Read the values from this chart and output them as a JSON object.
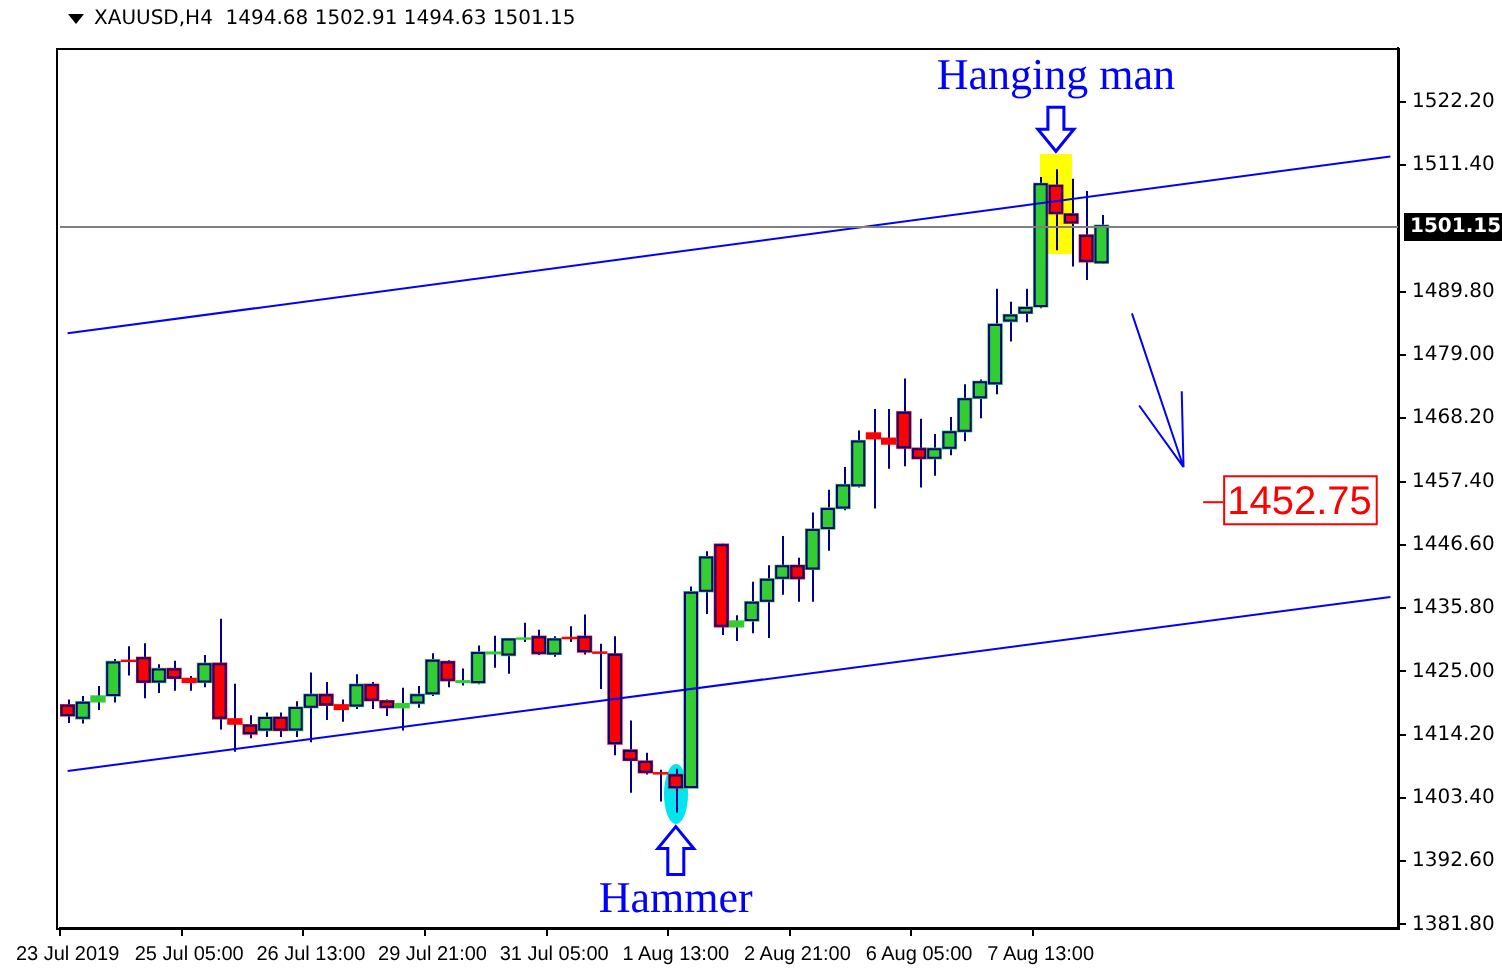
{
  "chart_data": {
    "type": "candlestick",
    "title": "XAUUSD,H4  1494.68 1502.91 1494.63 1501.15",
    "categories": [
      "23 Jul 2019",
      null,
      null,
      null,
      null,
      null,
      null,
      null,
      "25 Jul 05:00",
      null,
      null,
      null,
      null,
      null,
      null,
      null,
      "26 Jul 13:00",
      null,
      null,
      null,
      null,
      null,
      null,
      null,
      "29 Jul 21:00",
      null,
      null,
      null,
      null,
      null,
      null,
      null,
      "31 Jul 05:00",
      null,
      null,
      null,
      null,
      null,
      null,
      null,
      "1 Aug 13:00",
      null,
      null,
      null,
      null,
      null,
      null,
      null,
      "2 Aug 21:00",
      null,
      null,
      null,
      null,
      null,
      null,
      null,
      "6 Aug 05:00",
      null,
      null,
      null,
      null,
      null,
      null,
      null,
      "7 Aug 13:00",
      null,
      null,
      null,
      null,
      null,
      null,
      null,
      null,
      null,
      null,
      null,
      null,
      null,
      null,
      null,
      null,
      null,
      null,
      null,
      null,
      null,
      null,
      null
    ],
    "ohlc": [
      [
        1419.3,
        1420.2,
        1416.2,
        1417.4
      ],
      [
        1416.9,
        1420.8,
        1416.1,
        1419.8
      ],
      [
        1419.8,
        1422.5,
        1418.4,
        1420.8
      ],
      [
        1420.8,
        1427.1,
        1419.7,
        1426.7
      ],
      [
        1426.9,
        1429.3,
        1424.3,
        1426.7
      ],
      [
        1427.4,
        1429.8,
        1420.4,
        1423.1
      ],
      [
        1423.1,
        1426.2,
        1421.3,
        1425.5
      ],
      [
        1425.5,
        1426.8,
        1421.7,
        1423.8
      ],
      [
        1423.8,
        1424.2,
        1421.7,
        1423.1
      ],
      [
        1423.1,
        1427.8,
        1422.3,
        1426.4
      ],
      [
        1426.4,
        1434.0,
        1415.1,
        1416.9
      ],
      [
        1416.9,
        1422.9,
        1411.3,
        1416.0
      ],
      [
        1415.9,
        1417.5,
        1413.6,
        1414.3
      ],
      [
        1414.9,
        1418.0,
        1413.8,
        1417.2
      ],
      [
        1417.2,
        1418.0,
        1413.8,
        1414.9
      ],
      [
        1414.9,
        1419.9,
        1413.8,
        1418.9
      ],
      [
        1418.8,
        1424.8,
        1412.9,
        1421.1
      ],
      [
        1421.1,
        1423.2,
        1416.7,
        1419.2
      ],
      [
        1419.3,
        1420.2,
        1416.4,
        1418.5
      ],
      [
        1419.0,
        1424.5,
        1418.6,
        1422.8
      ],
      [
        1422.8,
        1423.2,
        1418.6,
        1420.0
      ],
      [
        1420.0,
        1420.2,
        1417.4,
        1418.8
      ],
      [
        1418.8,
        1422.2,
        1414.9,
        1419.5
      ],
      [
        1419.5,
        1422.5,
        1418.8,
        1421.1
      ],
      [
        1421.1,
        1428.1,
        1420.8,
        1427.0
      ],
      [
        1426.7,
        1426.9,
        1422.3,
        1423.4
      ],
      [
        1423.1,
        1425.5,
        1422.6,
        1423.4
      ],
      [
        1423.0,
        1429.4,
        1422.8,
        1428.3
      ],
      [
        1428.0,
        1431.1,
        1425.6,
        1428.3
      ],
      [
        1427.7,
        1430.7,
        1424.6,
        1430.6
      ],
      [
        1430.5,
        1433.3,
        1430.0,
        1430.7
      ],
      [
        1431.0,
        1432.1,
        1427.8,
        1428.0
      ],
      [
        1427.9,
        1431.0,
        1427.5,
        1430.6
      ],
      [
        1430.8,
        1432.7,
        1430.0,
        1430.6
      ],
      [
        1431.0,
        1434.7,
        1427.9,
        1428.3
      ],
      [
        1428.3,
        1429.7,
        1422.0,
        1428.1
      ],
      [
        1428.0,
        1431.0,
        1410.7,
        1412.6
      ],
      [
        1411.6,
        1416.6,
        1404.3,
        1409.8
      ],
      [
        1409.7,
        1411.1,
        1407.4,
        1407.7
      ],
      [
        1407.7,
        1408.2,
        1402.8,
        1407.5
      ],
      [
        1407.4,
        1408.4,
        1400.9,
        1405.1
      ],
      [
        1405.1,
        1439.5,
        1405.1,
        1438.6
      ],
      [
        1438.6,
        1445.5,
        1434.8,
        1444.6
      ],
      [
        1446.7,
        1446.8,
        1431.2,
        1432.6
      ],
      [
        1432.6,
        1434.6,
        1430.2,
        1433.6
      ],
      [
        1433.6,
        1440.3,
        1431.5,
        1436.9
      ],
      [
        1436.9,
        1443.1,
        1430.7,
        1440.8
      ],
      [
        1440.8,
        1448.1,
        1438.1,
        1443.1
      ],
      [
        1443.1,
        1444.4,
        1436.9,
        1440.8
      ],
      [
        1442.4,
        1452.1,
        1436.9,
        1449.3
      ],
      [
        1449.3,
        1456.0,
        1445.6,
        1452.9
      ],
      [
        1452.8,
        1459.9,
        1452.5,
        1456.9
      ],
      [
        1456.6,
        1466.1,
        1456.4,
        1464.4
      ],
      [
        1465.7,
        1469.8,
        1452.8,
        1464.7
      ],
      [
        1464.8,
        1469.8,
        1459.6,
        1463.8
      ],
      [
        1469.3,
        1475.0,
        1460.0,
        1463.1
      ],
      [
        1463.1,
        1468.1,
        1456.4,
        1461.3
      ],
      [
        1461.3,
        1465.5,
        1458.4,
        1463.1
      ],
      [
        1463.0,
        1468.4,
        1461.9,
        1466.0
      ],
      [
        1465.9,
        1474.0,
        1464.3,
        1471.6
      ],
      [
        1471.6,
        1474.8,
        1468.2,
        1474.5
      ],
      [
        1474.0,
        1490.3,
        1472.3,
        1484.3
      ],
      [
        1484.7,
        1488.1,
        1481.3,
        1485.9
      ],
      [
        1486.1,
        1490.3,
        1484.6,
        1487.2
      ],
      [
        1487.2,
        1509.4,
        1487.0,
        1508.3
      ],
      [
        1508.0,
        1510.7,
        1496.9,
        1503.1
      ],
      [
        1503.1,
        1509.1,
        1494.1,
        1501.5
      ],
      [
        1499.5,
        1507.0,
        1491.8,
        1494.9
      ],
      [
        1494.68,
        1502.91,
        1494.63,
        1501.15
      ],
      null,
      null,
      null,
      null,
      null,
      null,
      null,
      null,
      null,
      null,
      null,
      null,
      null,
      null,
      null,
      null,
      null,
      null,
      null
    ],
    "colors": [
      "#ff0000",
      "#32cd32",
      "#32cd32",
      "#32cd32",
      "#ff0000",
      "#ff0000",
      "#32cd32",
      "#ff0000",
      "#ff0000",
      "#32cd32",
      "#ff0000",
      "#ff0000",
      "#ff0000",
      "#32cd32",
      "#ff0000",
      "#32cd32",
      "#32cd32",
      "#ff0000",
      "#ff0000",
      "#32cd32",
      "#ff0000",
      "#ff0000",
      "#32cd32",
      "#32cd32",
      "#32cd32",
      "#ff0000",
      "#32cd32",
      "#32cd32",
      "#32cd32",
      "#32cd32",
      "#32cd32",
      "#ff0000",
      "#32cd32",
      "#ff0000",
      "#ff0000",
      "#ff0000",
      "#ff0000",
      "#ff0000",
      "#ff0000",
      "#ff0000",
      "#ff0000",
      "#32cd32",
      "#32cd32",
      "#ff0000",
      "#32cd32",
      "#32cd32",
      "#32cd32",
      "#32cd32",
      "#ff0000",
      "#32cd32",
      "#32cd32",
      "#32cd32",
      "#32cd32",
      "#ff0000",
      "#ff0000",
      "#ff0000",
      "#ff0000",
      "#32cd32",
      "#32cd32",
      "#32cd32",
      "#32cd32",
      "#32cd32",
      "#32cd32",
      "#32cd32",
      "#32cd32",
      "#ff0000",
      "#ff0000",
      "#ff0000",
      "#32cd32",
      null,
      null,
      null,
      null,
      null,
      null,
      null,
      null,
      null,
      null,
      null,
      null,
      null,
      null,
      null,
      null,
      null,
      null,
      null
    ],
    "series": [
      {
        "type": "line",
        "color": "#0000ff",
        "values": [
          1482.7,
          null,
          null,
          null,
          null,
          null,
          null,
          null,
          null,
          null,
          null,
          null,
          null,
          null,
          null,
          null,
          null,
          null,
          null,
          null,
          null,
          null,
          null,
          null,
          null,
          null,
          null,
          null,
          null,
          null,
          null,
          null,
          null,
          null,
          null,
          null,
          null,
          null,
          null,
          null,
          null,
          null,
          null,
          null,
          null,
          null,
          null,
          null,
          null,
          null,
          null,
          null,
          null,
          null,
          null,
          null,
          null,
          null,
          null,
          null,
          null,
          null,
          null,
          null,
          null,
          null,
          null,
          null,
          null,
          null,
          null,
          null,
          null,
          null,
          null,
          null,
          null,
          null,
          null,
          null,
          null,
          null,
          null,
          null,
          null,
          null,
          null,
          1512.9
        ]
      },
      {
        "type": "line",
        "color": "#0000ff",
        "values": [
          1408.0,
          null,
          null,
          null,
          null,
          null,
          null,
          null,
          null,
          null,
          null,
          null,
          null,
          null,
          null,
          null,
          null,
          null,
          null,
          null,
          null,
          null,
          null,
          null,
          null,
          null,
          null,
          null,
          null,
          null,
          null,
          null,
          null,
          null,
          null,
          null,
          null,
          null,
          null,
          null,
          null,
          null,
          null,
          null,
          null,
          null,
          null,
          null,
          null,
          null,
          null,
          null,
          null,
          null,
          null,
          null,
          null,
          null,
          null,
          null,
          null,
          null,
          null,
          null,
          null,
          null,
          null,
          null,
          null,
          null,
          null,
          null,
          null,
          null,
          null,
          null,
          null,
          null,
          null,
          null,
          null,
          null,
          null,
          null,
          null,
          null,
          null,
          1437.7
        ]
      }
    ],
    "ylim": [
      1381.2,
      1531.4
    ],
    "yticks": [
      {
        "value": 1381.8,
        "label": "1381.80"
      },
      {
        "value": 1392.6,
        "label": "1392.60"
      },
      {
        "value": 1403.4,
        "label": "1403.40"
      },
      {
        "value": 1414.2,
        "label": "1414.20"
      },
      {
        "value": 1425.0,
        "label": "1425.00"
      },
      {
        "value": 1435.8,
        "label": "1435.80"
      },
      {
        "value": 1446.6,
        "label": "1446.60"
      },
      {
        "value": 1457.4,
        "label": "1457.40"
      },
      {
        "value": 1468.2,
        "label": "1468.20"
      },
      {
        "value": 1479.0,
        "label": "1479.00"
      },
      {
        "value": 1489.8,
        "label": "1489.80"
      },
      {
        "value": 1511.4,
        "label": "1511.40"
      },
      {
        "value": 1522.2,
        "label": "1522.20"
      }
    ],
    "ref_lines": [
      {
        "axis": "y",
        "value": 1501.15,
        "label": "1501.15",
        "color": "#808080"
      }
    ],
    "annotations": [
      "Hanging man",
      "Hammer",
      "1452.75"
    ],
    "grid": false,
    "legend": false
  }
}
